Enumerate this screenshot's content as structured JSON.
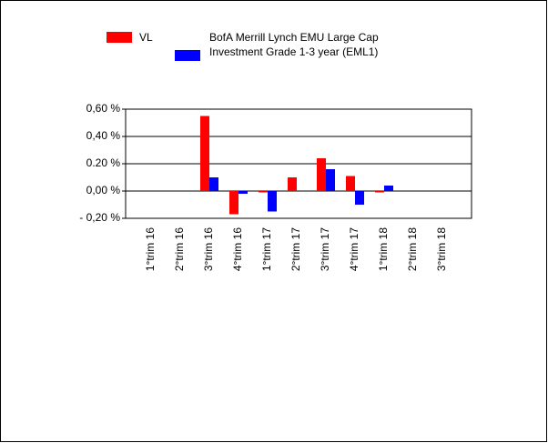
{
  "chart_data": {
    "type": "bar",
    "categories": [
      "1°trim 16",
      "2°trim 16",
      "3°trim 16",
      "4°trim 16",
      "1°trim 17",
      "2°trim 17",
      "3°trim 17",
      "4°trim 17",
      "1°trim 18",
      "2°trim 18",
      "3°trim 18"
    ],
    "series": [
      {
        "name": "VL",
        "color": "#ff0000",
        "values": [
          null,
          null,
          0.55,
          -0.17,
          -0.01,
          0.1,
          0.24,
          0.11,
          -0.01,
          null,
          null
        ]
      },
      {
        "name": "BofA Merrill Lynch EMU Large Cap Investment Grade 1-3 year (EML1)",
        "color": "#0000ff",
        "values": [
          null,
          null,
          0.1,
          -0.02,
          -0.15,
          null,
          0.16,
          -0.1,
          0.04,
          null,
          null
        ]
      }
    ],
    "ylim": [
      -0.2,
      0.6
    ],
    "yticks": [
      {
        "value": -0.2,
        "label": "- 0,20 %"
      },
      {
        "value": 0,
        "label": "0,00 %"
      },
      {
        "value": 0.2,
        "label": "0.20 %"
      },
      {
        "value": 0.4,
        "label": "0,40 %"
      },
      {
        "value": 0.6,
        "label": "0,60 %"
      }
    ],
    "grid": true
  }
}
